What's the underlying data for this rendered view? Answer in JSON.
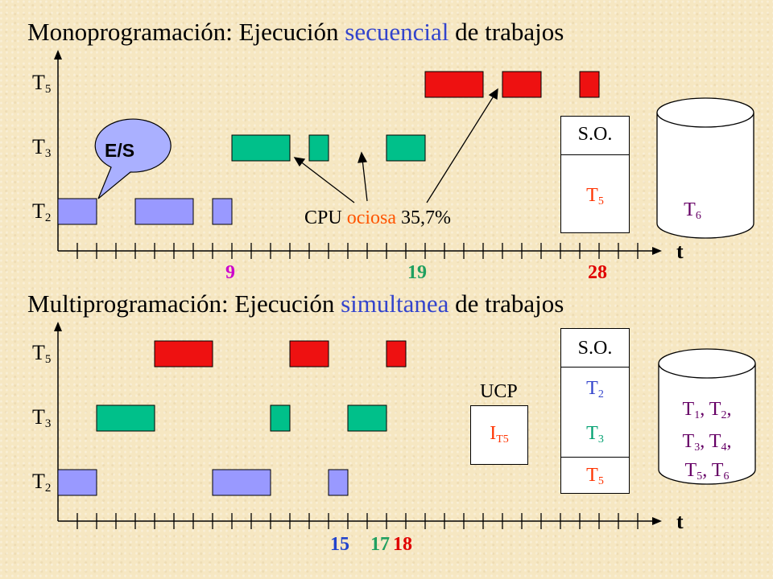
{
  "top": {
    "title_pre": "Monoprogramación: Ejecución ",
    "title_hl": "secuencial",
    "title_post": " de trabajos",
    "rows": [
      {
        "name": "T",
        "sub": "5"
      },
      {
        "name": "T",
        "sub": "3"
      },
      {
        "name": "T",
        "sub": "2"
      }
    ],
    "axis_label": "t",
    "marks": [
      {
        "text": "9",
        "color": "#cc00cc"
      },
      {
        "text": "19",
        "color": "#20a060"
      },
      {
        "text": "28",
        "color": "#e00000"
      }
    ],
    "callout": "E/S",
    "idle_pre": "CPU ",
    "idle_hl": "ociosa",
    "idle_post": " 35,7%",
    "memory": {
      "os": "S.O.",
      "job": "T",
      "job_sub": "5"
    },
    "disk": {
      "job": "T",
      "job_sub": "6"
    }
  },
  "bottom": {
    "title_pre": "Multiprogramación: Ejecución ",
    "title_hl": "simultanea",
    "title_post": " de trabajos",
    "rows": [
      {
        "name": "T",
        "sub": "5"
      },
      {
        "name": "T",
        "sub": "3"
      },
      {
        "name": "T",
        "sub": "2"
      }
    ],
    "axis_label": "t",
    "marks": [
      {
        "text": "15",
        "color": "#2244cc"
      },
      {
        "text": "17",
        "color": "#20a060"
      },
      {
        "text": "18",
        "color": "#e00000"
      }
    ],
    "cpu": {
      "label": "UCP",
      "value": "I",
      "value_sub": "T5"
    },
    "memory": {
      "os": "S.O.",
      "jobs": [
        {
          "name": "T",
          "sub": "2"
        },
        {
          "name": "T",
          "sub": "3"
        },
        {
          "name": "T",
          "sub": "5"
        }
      ]
    },
    "disk": {
      "line1": "T1, T2,",
      "line2": "T3, T4,",
      "line3": "T5, T6"
    }
  },
  "colors": {
    "T2": "#9999ff",
    "T3": "#00c08a",
    "T5": "#ee1111",
    "title_highlight": "#3344cc",
    "idle": "#ff5500",
    "disk_text": "#660066"
  }
}
